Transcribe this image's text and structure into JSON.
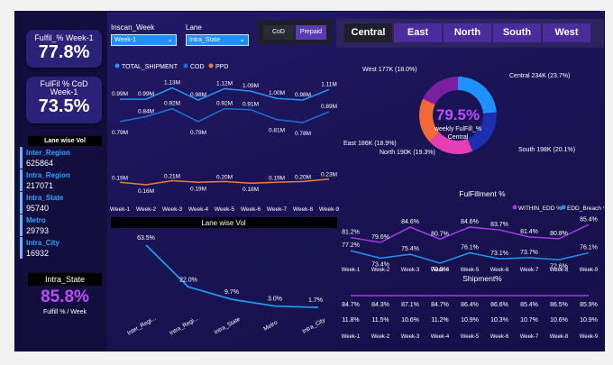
{
  "kpi": {
    "fulfil_week_label": "Fulfil_% Week-1",
    "fulfil_week_value": "77.8%",
    "fulfil_cod_label": "FulFil % CoD Week-1",
    "fulfil_cod_value": "73.5%"
  },
  "lane_panel": {
    "title": "Lane wise Vol",
    "items": [
      {
        "label": "Inter_Region",
        "value": "625864"
      },
      {
        "label": "Intra_Region",
        "value": "217071"
      },
      {
        "label": "Intra_State",
        "value": "95740"
      },
      {
        "label": "Metro",
        "value": "29793"
      },
      {
        "label": "Intra_City",
        "value": "16932"
      }
    ],
    "selected_lane": "Intra_State",
    "selected_value": "85.8%",
    "selected_caption": "Fulfill % / Week"
  },
  "filters": {
    "inscan_week_label": "Inscan_Week",
    "inscan_week_value": "Week-1",
    "lane_label": "Lane",
    "lane_value": "Intra_State",
    "cod_btn": "CoD",
    "prepaid_btn": "Prepaid"
  },
  "regions": [
    "Central",
    "East",
    "North",
    "South",
    "West"
  ],
  "colors": {
    "total": "#2196f3",
    "cod": "#1e6fd9",
    "ppd": "#f07c3a",
    "within": "#a63be8",
    "breach": "#2196f3",
    "donut": [
      "#1e90ff",
      "#1c2fae",
      "#e53fb5",
      "#f26a3a",
      "#7b1fa2"
    ]
  },
  "chart_data": [
    {
      "type": "line",
      "title": "",
      "legend": [
        "TOTAL_SHIPMENT",
        "COD",
        "PPD"
      ],
      "categories": [
        "Week-1",
        "Week-2",
        "Week-3",
        "Week-4",
        "Week-5",
        "Week-6",
        "Week-7",
        "Week-8",
        "Week-9"
      ],
      "series": [
        {
          "name": "TOTAL_SHIPMENT",
          "values": [
            0.99,
            0.99,
            1.13,
            0.98,
            1.12,
            1.09,
            1.0,
            0.98,
            1.11
          ],
          "labels": [
            "0.99M",
            "0.99M",
            "1.13M",
            "0.98M",
            "1.12M",
            "1.09M",
            "1.00M",
            "0.98M",
            "1.11M"
          ]
        },
        {
          "name": "COD",
          "values": [
            0.79,
            0.84,
            0.92,
            0.79,
            0.92,
            0.91,
            0.81,
            0.78,
            0.89
          ],
          "labels": [
            "0.79M",
            "0.84M",
            "0.92M",
            "0.79M",
            "0.92M",
            "0.91M",
            "0.81M",
            "0.78M",
            "0.89M"
          ]
        },
        {
          "name": "PPD",
          "values": [
            0.19,
            0.16,
            0.21,
            0.19,
            0.2,
            0.18,
            0.19,
            0.2,
            0.23
          ],
          "labels": [
            "0.19M",
            "0.16M",
            "0.21M",
            "0.19M",
            "0.20M",
            "0.18M",
            "0.19M",
            "0.20M",
            "0.23M"
          ]
        }
      ]
    },
    {
      "type": "pie",
      "title": "weekly FulFill_% Central",
      "center_value": "79.5%",
      "categories": [
        "Central",
        "South",
        "North",
        "East",
        "West"
      ],
      "values": [
        234,
        198,
        190,
        186,
        177
      ],
      "labels": [
        "Central 234K (23.7%)",
        "South 198K (20.1%)",
        "North 190K (19.3%)",
        "East 186K (18.9%)",
        "West 177K (18.0%)"
      ]
    },
    {
      "type": "line",
      "title": "Lane wise Vol",
      "categories": [
        "Inter_Regi...",
        "Intra_Regi...",
        "Intra_State",
        "Metro",
        "Intra_City"
      ],
      "values": [
        63.5,
        22.0,
        9.7,
        3.0,
        1.7
      ],
      "labels": [
        "63.5%",
        "22.0%",
        "9.7%",
        "3.0%",
        "1.7%"
      ]
    },
    {
      "type": "line",
      "title": "FulFillment %",
      "legend": [
        "WITHIN_EDD %",
        "EDD_Breach %"
      ],
      "categories": [
        "Week-1",
        "Week-2",
        "Week-3",
        "Week-4",
        "Week-5",
        "Week-6",
        "Week-7",
        "Week-8",
        "Week-9"
      ],
      "series": [
        {
          "name": "WITHIN_EDD %",
          "values": [
            81.2,
            79.6,
            84.6,
            80.7,
            84.6,
            83.7,
            81.4,
            80.8,
            85.4
          ],
          "labels": [
            "81.2%",
            "79.6%",
            "84.6%",
            "80.7%",
            "84.6%",
            "83.7%",
            "81.4%",
            "80.8%",
            "85.4%"
          ]
        },
        {
          "name": "EDD_Breach %",
          "values": [
            77.2,
            73.4,
            75.4,
            70.9,
            76.1,
            73.1,
            73.7,
            72.6,
            76.1
          ],
          "labels": [
            "77.2%",
            "73.4%",
            "75.4%",
            "70.9%",
            "76.1%",
            "73.1%",
            "73.7%",
            "72.6%",
            "76.1%"
          ]
        }
      ]
    },
    {
      "type": "line",
      "title": "Shipment%",
      "categories": [
        "Week-1",
        "Week-2",
        "Week-3",
        "Week-4",
        "Week-5",
        "Week-6",
        "Week-7",
        "Week-8",
        "Week-9"
      ],
      "series": [
        {
          "name": "",
          "values": [
            84.7,
            84.3,
            87.1,
            84.7,
            86.4,
            86.6,
            85.4,
            86.5,
            85.9
          ],
          "labels": [
            "84.7%",
            "84.3%",
            "87.1%",
            "84.7%",
            "86.4%",
            "86.6%",
            "85.4%",
            "86.5%",
            "85.9%"
          ]
        },
        {
          "name": "",
          "values": [
            11.8,
            11.5,
            10.6,
            11.2,
            10.9,
            10.3,
            10.7,
            10.6,
            10.9
          ],
          "labels": [
            "11.8%",
            "11.5%",
            "10.6%",
            "11.2%",
            "10.9%",
            "10.3%",
            "10.7%",
            "10.6%",
            "10.9%"
          ]
        }
      ]
    }
  ]
}
